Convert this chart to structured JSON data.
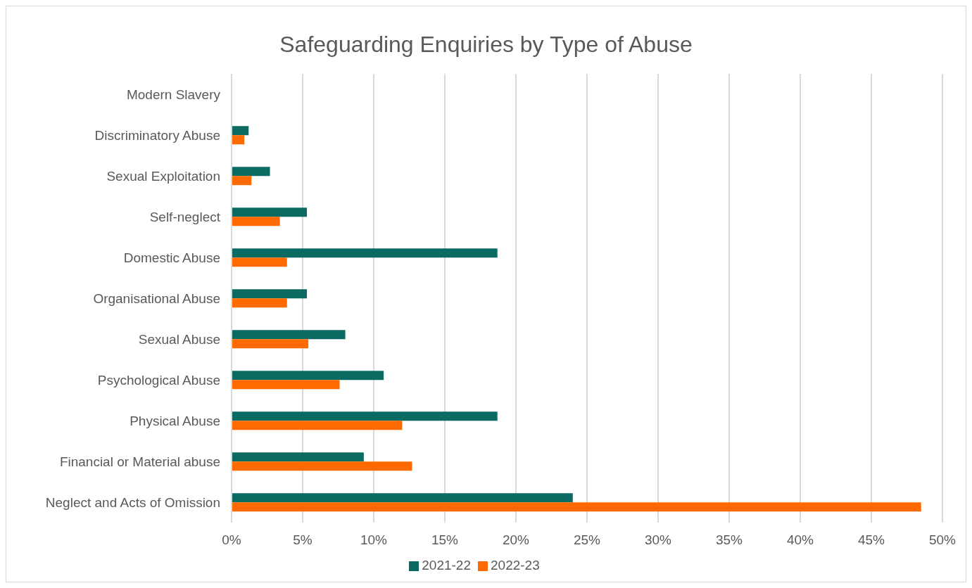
{
  "chart_data": {
    "type": "bar",
    "orientation": "horizontal",
    "title": "Safeguarding Enquiries by Type of Abuse",
    "categories": [
      "Modern Slavery",
      "Discriminatory Abuse",
      "Sexual Exploitation",
      "Self-neglect",
      "Domestic Abuse",
      "Organisational Abuse",
      "Sexual Abuse",
      "Psychological Abuse",
      "Physical Abuse",
      "Financial or Material abuse",
      "Neglect and Acts of Omission"
    ],
    "series": [
      {
        "name": "2021-22",
        "color": "#0b6b63",
        "values": [
          0,
          1.2,
          2.7,
          5.3,
          18.7,
          5.3,
          8.0,
          10.7,
          18.7,
          9.3,
          24.0
        ]
      },
      {
        "name": "2022-23",
        "color": "#ff6a00",
        "values": [
          0,
          0.9,
          1.4,
          3.4,
          3.9,
          3.9,
          5.4,
          7.6,
          12.0,
          12.7,
          48.5
        ]
      }
    ],
    "xlim": [
      0,
      50
    ],
    "xticks": [
      {
        "value": 0,
        "label": "0%"
      },
      {
        "value": 5,
        "label": "5%"
      },
      {
        "value": 10,
        "label": "10%"
      },
      {
        "value": 15,
        "label": "15%"
      },
      {
        "value": 20,
        "label": "20%"
      },
      {
        "value": 25,
        "label": "25%"
      },
      {
        "value": 30,
        "label": "30%"
      },
      {
        "value": 35,
        "label": "35%"
      },
      {
        "value": 40,
        "label": "40%"
      },
      {
        "value": 45,
        "label": "45%"
      },
      {
        "value": 50,
        "label": "50%"
      }
    ],
    "grid": "x",
    "legend": "bottom"
  }
}
